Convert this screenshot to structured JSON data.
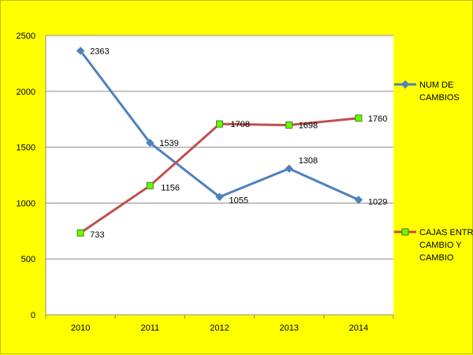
{
  "chart_data": {
    "type": "line",
    "title": "",
    "xlabel": "",
    "ylabel": "",
    "categories": [
      "2010",
      "2011",
      "2012",
      "2013",
      "2014"
    ],
    "ylim": [
      0,
      2500
    ],
    "yticks": [
      0,
      500,
      1000,
      1500,
      2000,
      2500
    ],
    "grid": true,
    "legend_position": "right",
    "series": [
      {
        "name_lines": [
          "NUM DE",
          "CAMBIOS"
        ],
        "values": [
          2363,
          1539,
          1055,
          1308,
          1029
        ],
        "color": "#4f81bd",
        "marker": "diamond",
        "marker_color": "#4f81bd"
      },
      {
        "name_lines": [
          "CAJAS ENTRE",
          "CAMBIO Y",
          "CAMBIO"
        ],
        "values": [
          733,
          1156,
          1708,
          1698,
          1760
        ],
        "color": "#c0504d",
        "marker": "square",
        "marker_color": "#66ff00"
      }
    ]
  }
}
